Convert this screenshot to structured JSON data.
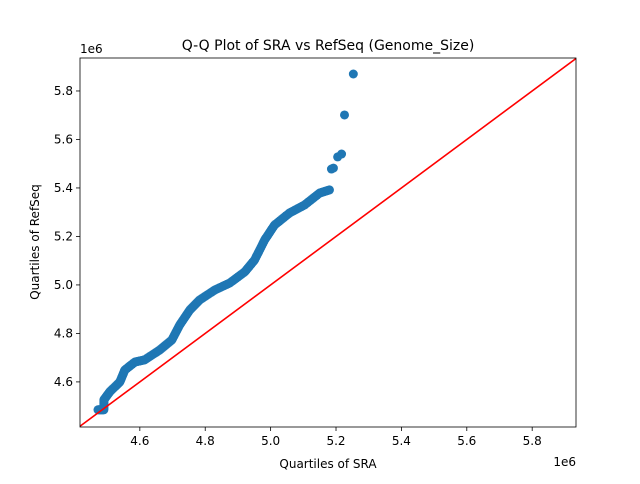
{
  "chart_data": {
    "type": "scatter",
    "title": "Q-Q Plot of SRA vs RefSeq (Genome_Size)",
    "xlabel": "Quartiles of SRA",
    "ylabel": "Quartiles of RefSeq",
    "x_offset_label": "1e6",
    "y_offset_label": "1e6",
    "xlim": [
      4.417,
      5.934
    ],
    "ylim": [
      4.414,
      5.936
    ],
    "xticks": [
      4.6,
      4.8,
      5.0,
      5.2,
      5.4,
      5.6,
      5.8
    ],
    "xtick_labels": [
      "4.6",
      "4.8",
      "5.0",
      "5.2",
      "5.4",
      "5.6",
      "5.8"
    ],
    "yticks": [
      4.6,
      4.8,
      5.0,
      5.2,
      5.4,
      5.6,
      5.8
    ],
    "ytick_labels": [
      "4.6",
      "4.8",
      "5.0",
      "5.2",
      "5.4",
      "5.6",
      "5.8"
    ],
    "grid": false,
    "point_color": "#1f77b4",
    "reference_line": {
      "color": "#ff0000",
      "from": [
        4.417,
        4.417
      ],
      "to": [
        5.934,
        5.934
      ]
    },
    "points": [
      [
        4.472,
        4.485
      ],
      [
        4.49,
        4.485
      ],
      [
        4.49,
        4.526
      ],
      [
        4.508,
        4.559
      ],
      [
        4.539,
        4.6
      ],
      [
        4.554,
        4.649
      ],
      [
        4.585,
        4.682
      ],
      [
        4.615,
        4.691
      ],
      [
        4.661,
        4.732
      ],
      [
        4.698,
        4.773
      ],
      [
        4.722,
        4.835
      ],
      [
        4.753,
        4.897
      ],
      [
        4.783,
        4.938
      ],
      [
        4.829,
        4.979
      ],
      [
        4.875,
        5.008
      ],
      [
        4.921,
        5.054
      ],
      [
        4.951,
        5.103
      ],
      [
        4.982,
        5.186
      ],
      [
        5.012,
        5.247
      ],
      [
        5.058,
        5.297
      ],
      [
        5.104,
        5.33
      ],
      [
        5.15,
        5.379
      ],
      [
        5.18,
        5.392
      ],
      [
        5.186,
        5.478
      ],
      [
        5.192,
        5.482
      ],
      [
        5.205,
        5.528
      ],
      [
        5.217,
        5.54
      ],
      [
        5.226,
        5.701
      ],
      [
        5.253,
        5.87
      ]
    ]
  }
}
